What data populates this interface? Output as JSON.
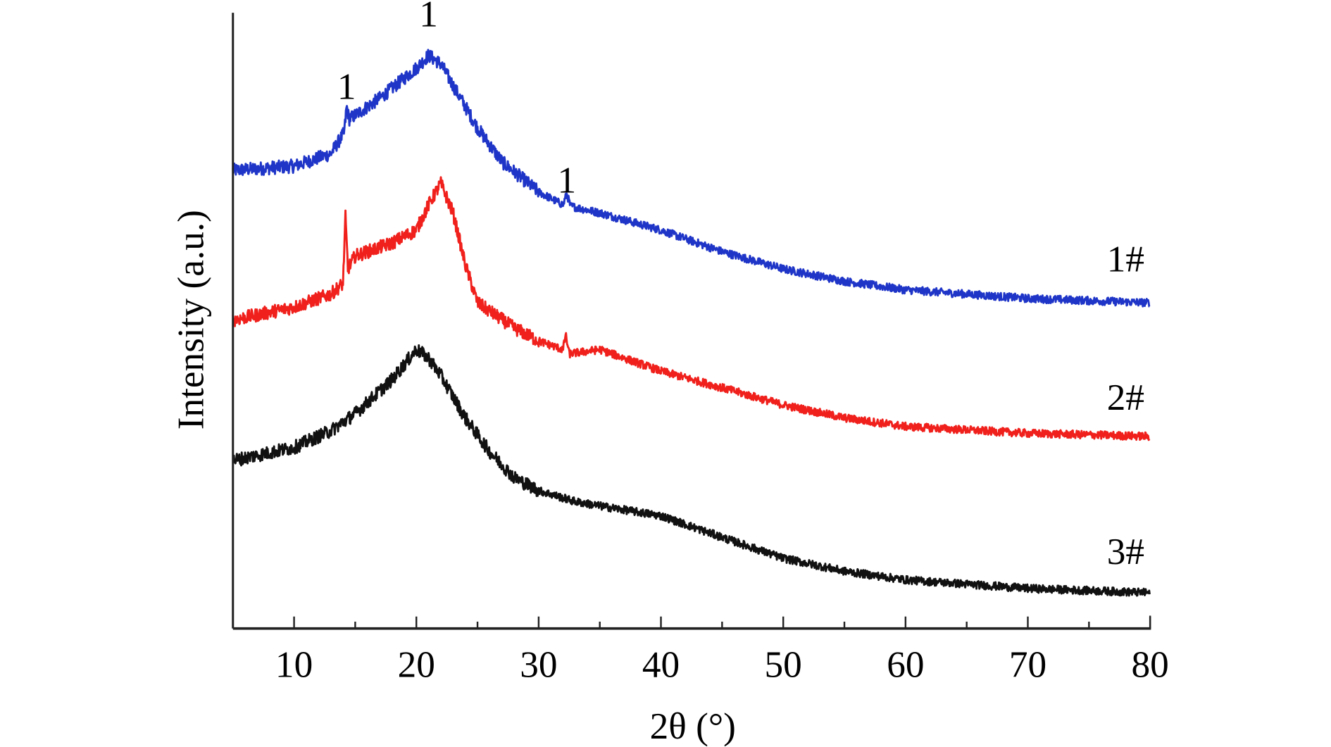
{
  "chart_data": {
    "type": "line",
    "title": "",
    "xlabel": "2θ (°)",
    "ylabel": "Intensity (a.u.)",
    "xlim": [
      5,
      80
    ],
    "ylim": [
      0,
      100
    ],
    "xticks": [
      10,
      20,
      30,
      40,
      50,
      60,
      70,
      80
    ],
    "xticks_minor": [
      15,
      25,
      35,
      45,
      55,
      65,
      75
    ],
    "yticks": [],
    "grid": false,
    "legend": "none (labels at right end of curves)",
    "series": [
      {
        "name": "1#",
        "color": "#1f35c8",
        "x": [
          5,
          10,
          13,
          14.1,
          14.3,
          14.5,
          17,
          20,
          21,
          22,
          23,
          25,
          27,
          30,
          32,
          32.3,
          32.6,
          35,
          40,
          45,
          50,
          55,
          60,
          70,
          80
        ],
        "y": [
          74.4,
          75.1,
          77.1,
          80.5,
          84.8,
          82.7,
          86.1,
          91.0,
          93.1,
          91.7,
          88.2,
          81.3,
          75.8,
          70.9,
          68.8,
          70.6,
          68.6,
          67.5,
          64.7,
          61.2,
          58.4,
          56.4,
          55.0,
          53.6,
          52.9
        ]
      },
      {
        "name": "2#",
        "color": "#f0201c",
        "x": [
          5,
          10,
          13,
          14.0,
          14.2,
          14.4,
          15,
          18,
          20,
          21,
          22,
          23,
          24,
          25,
          28,
          30,
          32,
          32.2,
          32.5,
          35,
          40,
          45,
          50,
          55,
          60,
          70,
          80
        ],
        "y": [
          50.1,
          52.2,
          54.3,
          56.0,
          66.8,
          58.4,
          60.5,
          62.6,
          64.7,
          68.8,
          72.3,
          67.5,
          59.1,
          52.9,
          48.8,
          46.7,
          45.3,
          47.8,
          44.6,
          45.3,
          41.8,
          39.1,
          36.3,
          34.2,
          32.8,
          31.7,
          31.2
        ]
      },
      {
        "name": "3#",
        "color": "#111111",
        "x": [
          5,
          10,
          13,
          15,
          18,
          20,
          21,
          22,
          24,
          26,
          28,
          30,
          33,
          35,
          40,
          45,
          50,
          55,
          60,
          70,
          80
        ],
        "y": [
          27.3,
          29.4,
          32.1,
          34.9,
          40.4,
          45.3,
          43.9,
          41.1,
          34.2,
          28.7,
          24.5,
          22.4,
          20.6,
          19.9,
          18.3,
          14.8,
          11.4,
          9.3,
          7.9,
          6.5,
          5.8
        ]
      }
    ],
    "annotations": [
      {
        "text": "1",
        "x": 14.3,
        "y": 86.0
      },
      {
        "text": "1",
        "x": 21.0,
        "y": 97.8
      },
      {
        "text": "1",
        "x": 32.3,
        "y": 70.8
      }
    ],
    "series_labels": [
      {
        "text": "1#",
        "x": 78,
        "y": 58.0
      },
      {
        "text": "2#",
        "x": 78,
        "y": 35.5
      },
      {
        "text": "3#",
        "x": 78,
        "y": 10.5
      }
    ]
  }
}
